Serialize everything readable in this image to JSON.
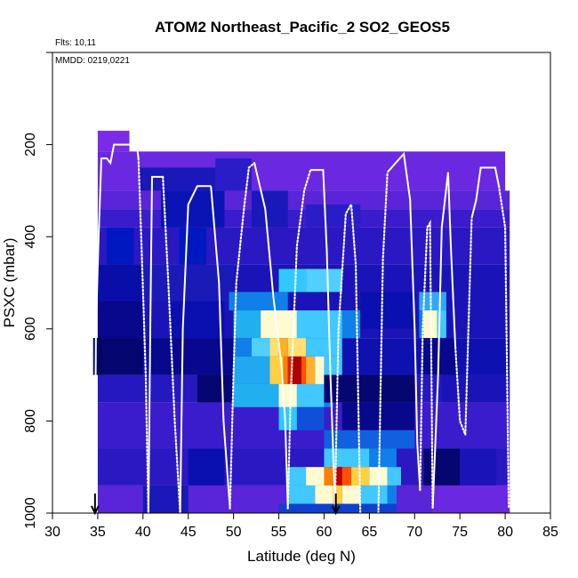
{
  "chart_data": {
    "type": "heatmap",
    "title": "ATOM2 Northeast_Pacific_2 SO2_GEOS5",
    "flights_label": "Flts: 10,11",
    "dates_label": "MMDD: 0219,0221",
    "xlabel": "Latitude (deg N)",
    "ylabel": "PSXC (mbar)",
    "xlim": [
      30,
      85
    ],
    "ylim": [
      1000,
      0
    ],
    "x_ticks": [
      30,
      35,
      40,
      45,
      50,
      55,
      60,
      65,
      70,
      75,
      80,
      85
    ],
    "y_ticks": [
      200,
      400,
      600,
      800,
      1000
    ],
    "x_tick_labels": [
      "30",
      "35",
      "40",
      "45",
      "50",
      "55",
      "60",
      "65",
      "70",
      "75",
      "80",
      "85"
    ],
    "y_tick_labels": [
      "200",
      "400",
      "600",
      "800",
      "1000"
    ],
    "markers": [
      34.7,
      61.3
    ],
    "colors": {
      "background": "#7b2be8",
      "flight_track": "#ffffff",
      "axis": "#000000"
    },
    "cells": [
      {
        "x": [
          35.0,
          38.5
        ],
        "p": [
          170,
          215
        ],
        "c": "#7b2be8"
      },
      {
        "x": [
          35.0,
          80.0
        ],
        "p": [
          215,
          300
        ],
        "c": "#6a28e0"
      },
      {
        "x": [
          35.0,
          80.5
        ],
        "p": [
          300,
          340
        ],
        "c": "#5a24d8"
      },
      {
        "x": [
          35.0,
          80.5
        ],
        "p": [
          340,
          380
        ],
        "c": "#3a1ccc"
      },
      {
        "x": [
          35.0,
          80.5
        ],
        "p": [
          380,
          460
        ],
        "c": "#2a18c2"
      },
      {
        "x": [
          35.0,
          80.5
        ],
        "p": [
          460,
          620
        ],
        "c": "#1a14b8"
      },
      {
        "x": [
          34.5,
          80.5
        ],
        "p": [
          620,
          700
        ],
        "c": "#0f10b0"
      },
      {
        "x": [
          35.0,
          80.5
        ],
        "p": [
          700,
          760
        ],
        "c": "#2518c0"
      },
      {
        "x": [
          35.0,
          80.5
        ],
        "p": [
          760,
          860
        ],
        "c": "#3a1ccc"
      },
      {
        "x": [
          35.0,
          80.5
        ],
        "p": [
          860,
          940
        ],
        "c": "#2a18c2"
      },
      {
        "x": [
          35.0,
          80.5
        ],
        "p": [
          940,
          1000
        ],
        "c": "#5a24d8"
      },
      {
        "x": [
          39.5,
          48.0
        ],
        "p": [
          250,
          300
        ],
        "c": "#1a18b8"
      },
      {
        "x": [
          42.0,
          49.0
        ],
        "p": [
          300,
          380
        ],
        "c": "#0a14b4"
      },
      {
        "x": [
          44.0,
          47.0
        ],
        "p": [
          380,
          470
        ],
        "c": "#0018c0"
      },
      {
        "x": [
          48.0,
          52.0
        ],
        "p": [
          230,
          300
        ],
        "c": "#2a1cc6"
      },
      {
        "x": [
          52.0,
          56.0
        ],
        "p": [
          300,
          380
        ],
        "c": "#1a18b8"
      },
      {
        "x": [
          58.0,
          64.0
        ],
        "p": [
          330,
          380
        ],
        "c": "#2a1cc6"
      },
      {
        "x": [
          36.0,
          39.0
        ],
        "p": [
          380,
          460
        ],
        "c": "#0018c0"
      },
      {
        "x": [
          35.0,
          40.5
        ],
        "p": [
          460,
          540
        ],
        "c": "#0a0ea8"
      },
      {
        "x": [
          35.0,
          40.0
        ],
        "p": [
          540,
          620
        ],
        "c": "#08088c"
      },
      {
        "x": [
          35.0,
          40.0
        ],
        "p": [
          620,
          700
        ],
        "c": "#060670"
      },
      {
        "x": [
          40.0,
          50.0
        ],
        "p": [
          460,
          540
        ],
        "c": "#1a1ab8"
      },
      {
        "x": [
          43.0,
          49.0
        ],
        "p": [
          540,
          620
        ],
        "c": "#0a10b0"
      },
      {
        "x": [
          40.5,
          50.0
        ],
        "p": [
          620,
          700
        ],
        "c": "#08088c"
      },
      {
        "x": [
          46.0,
          50.0
        ],
        "p": [
          700,
          760
        ],
        "c": "#060670"
      },
      {
        "x": [
          45.0,
          49.0
        ],
        "p": [
          860,
          940
        ],
        "c": "#0a10b0"
      },
      {
        "x": [
          40.0,
          45.0
        ],
        "p": [
          940,
          1000
        ],
        "c": "#1a18b8"
      },
      {
        "x": [
          49.5,
          56.0
        ],
        "p": [
          520,
          560
        ],
        "c": "#1080e8"
      },
      {
        "x": [
          55.0,
          58.0
        ],
        "p": [
          470,
          520
        ],
        "c": "#30c8ff"
      },
      {
        "x": [
          58.0,
          62.0
        ],
        "p": [
          470,
          520
        ],
        "c": "#50d0ff"
      },
      {
        "x": [
          50.0,
          53.0
        ],
        "p": [
          560,
          620
        ],
        "c": "#20b0f0"
      },
      {
        "x": [
          53.0,
          57.0
        ],
        "p": [
          560,
          620
        ],
        "c": "#fffbd0"
      },
      {
        "x": [
          57.0,
          62.0
        ],
        "p": [
          560,
          620
        ],
        "c": "#40c8ff"
      },
      {
        "x": [
          62.0,
          64.0
        ],
        "p": [
          560,
          620
        ],
        "c": "#1080e8"
      },
      {
        "x": [
          50.0,
          52.0
        ],
        "p": [
          620,
          660
        ],
        "c": "#1080e8"
      },
      {
        "x": [
          52.0,
          54.0
        ],
        "p": [
          620,
          660
        ],
        "c": "#50d0ff"
      },
      {
        "x": [
          54.0,
          55.0
        ],
        "p": [
          620,
          660
        ],
        "c": "#ffe070"
      },
      {
        "x": [
          55.0,
          56.0
        ],
        "p": [
          620,
          660
        ],
        "c": "#ffb020"
      },
      {
        "x": [
          56.0,
          58.0
        ],
        "p": [
          620,
          660
        ],
        "c": "#ffe070"
      },
      {
        "x": [
          58.0,
          62.0
        ],
        "p": [
          620,
          660
        ],
        "c": "#40c8ff"
      },
      {
        "x": [
          50.0,
          54.0
        ],
        "p": [
          660,
          720
        ],
        "c": "#20a8f0"
      },
      {
        "x": [
          54.0,
          55.5
        ],
        "p": [
          660,
          720
        ],
        "c": "#ffd040"
      },
      {
        "x": [
          55.5,
          56.0
        ],
        "p": [
          660,
          720
        ],
        "c": "#ff8000"
      },
      {
        "x": [
          56.0,
          56.5
        ],
        "p": [
          660,
          720
        ],
        "c": "#e02000"
      },
      {
        "x": [
          56.5,
          57.5
        ],
        "p": [
          660,
          720
        ],
        "c": "#b00000"
      },
      {
        "x": [
          57.5,
          58.0
        ],
        "p": [
          660,
          720
        ],
        "c": "#ff5000"
      },
      {
        "x": [
          58.0,
          59.0
        ],
        "p": [
          660,
          720
        ],
        "c": "#ffb030"
      },
      {
        "x": [
          59.0,
          60.0
        ],
        "p": [
          660,
          720
        ],
        "c": "#fffbd0"
      },
      {
        "x": [
          60.0,
          62.0
        ],
        "p": [
          660,
          720
        ],
        "c": "#40c8ff"
      },
      {
        "x": [
          50.0,
          55.0
        ],
        "p": [
          720,
          770
        ],
        "c": "#20b0f0"
      },
      {
        "x": [
          55.0,
          57.0
        ],
        "p": [
          720,
          770
        ],
        "c": "#fffbd0"
      },
      {
        "x": [
          57.0,
          60.0
        ],
        "p": [
          720,
          770
        ],
        "c": "#40c8ff"
      },
      {
        "x": [
          60.0,
          61.0
        ],
        "p": [
          720,
          770
        ],
        "c": "#1080e8"
      },
      {
        "x": [
          55.0,
          57.0
        ],
        "p": [
          770,
          820
        ],
        "c": "#30c8ff"
      },
      {
        "x": [
          57.0,
          60.0
        ],
        "p": [
          770,
          820
        ],
        "c": "#1050d8"
      },
      {
        "x": [
          60.0,
          70.0
        ],
        "p": [
          700,
          760
        ],
        "c": "#060670"
      },
      {
        "x": [
          62.0,
          70.0
        ],
        "p": [
          760,
          820
        ],
        "c": "#08088c"
      },
      {
        "x": [
          60.0,
          70.0
        ],
        "p": [
          820,
          860
        ],
        "c": "#1060e0"
      },
      {
        "x": [
          60.0,
          65.0
        ],
        "p": [
          860,
          900
        ],
        "c": "#40c8ff"
      },
      {
        "x": [
          65.0,
          68.0
        ],
        "p": [
          860,
          900
        ],
        "c": "#1080e8"
      },
      {
        "x": [
          56.0,
          58.0
        ],
        "p": [
          900,
          940
        ],
        "c": "#40c8ff"
      },
      {
        "x": [
          58.0,
          60.0
        ],
        "p": [
          900,
          940
        ],
        "c": "#fffbd0"
      },
      {
        "x": [
          60.0,
          61.0
        ],
        "p": [
          900,
          940
        ],
        "c": "#ff8000"
      },
      {
        "x": [
          61.0,
          62.0
        ],
        "p": [
          900,
          940
        ],
        "c": "#c00000"
      },
      {
        "x": [
          62.0,
          63.0
        ],
        "p": [
          900,
          940
        ],
        "c": "#ff5000"
      },
      {
        "x": [
          63.0,
          65.0
        ],
        "p": [
          900,
          940
        ],
        "c": "#ffd040"
      },
      {
        "x": [
          65.0,
          67.0
        ],
        "p": [
          900,
          940
        ],
        "c": "#fffbd0"
      },
      {
        "x": [
          67.0,
          68.5
        ],
        "p": [
          900,
          940
        ],
        "c": "#40c8ff"
      },
      {
        "x": [
          56.0,
          59.0
        ],
        "p": [
          940,
          980
        ],
        "c": "#40c8ff"
      },
      {
        "x": [
          59.0,
          61.0
        ],
        "p": [
          940,
          980
        ],
        "c": "#fffbd0"
      },
      {
        "x": [
          61.0,
          62.0
        ],
        "p": [
          940,
          980
        ],
        "c": "#ffd040"
      },
      {
        "x": [
          62.0,
          64.0
        ],
        "p": [
          940,
          980
        ],
        "c": "#fffbd0"
      },
      {
        "x": [
          64.0,
          67.0
        ],
        "p": [
          940,
          980
        ],
        "c": "#40c8ff"
      },
      {
        "x": [
          67.0,
          69.0
        ],
        "p": [
          940,
          980
        ],
        "c": "#1080e8"
      },
      {
        "x": [
          55.0,
          68.0
        ],
        "p": [
          980,
          1000
        ],
        "c": "#1040d0"
      },
      {
        "x": [
          68.0,
          72.0
        ],
        "p": [
          940,
          1000
        ],
        "c": "#5a24d8"
      },
      {
        "x": [
          64.0,
          70.0
        ],
        "p": [
          520,
          600
        ],
        "c": "#0a10b0"
      },
      {
        "x": [
          70.5,
          73.5
        ],
        "p": [
          520,
          560
        ],
        "c": "#30a8f8"
      },
      {
        "x": [
          71.0,
          72.5
        ],
        "p": [
          560,
          620
        ],
        "c": "#fffbd0"
      },
      {
        "x": [
          70.5,
          71.0
        ],
        "p": [
          560,
          620
        ],
        "c": "#1080e8"
      },
      {
        "x": [
          72.5,
          73.5
        ],
        "p": [
          560,
          620
        ],
        "c": "#40c8ff"
      },
      {
        "x": [
          71.0,
          74.5
        ],
        "p": [
          620,
          700
        ],
        "c": "#08088c"
      },
      {
        "x": [
          73.0,
          80.5
        ],
        "p": [
          700,
          760
        ],
        "c": "#1a14b8"
      },
      {
        "x": [
          71.0,
          75.0
        ],
        "p": [
          860,
          940
        ],
        "c": "#060670"
      },
      {
        "x": [
          75.0,
          79.0
        ],
        "p": [
          860,
          940
        ],
        "c": "#1a14b8"
      },
      {
        "x": [
          72.0,
          80.5
        ],
        "p": [
          940,
          1000
        ],
        "c": "#6a28e0"
      },
      {
        "x": [
          34.5,
          35.5
        ],
        "p": [
          620,
          700
        ],
        "c": "#040460"
      }
    ],
    "flight_track_segments": [
      {
        "style": "solid",
        "lat": [
          34.7,
          34.8,
          35.1,
          35.4,
          36.0,
          36.4,
          36.8,
          39.3,
          39.5
        ],
        "p": [
          900,
          600,
          400,
          230,
          230,
          240,
          200,
          200,
          230
        ]
      },
      {
        "style": "dotted",
        "lat": [
          39.5,
          39.8,
          40.3,
          40.6
        ],
        "p": [
          230,
          400,
          700,
          1000
        ]
      },
      {
        "style": "solid",
        "lat": [
          40.6,
          40.8,
          41.0,
          42.2
        ],
        "p": [
          1000,
          600,
          270,
          270
        ]
      },
      {
        "style": "dotted",
        "lat": [
          42.2,
          42.8,
          43.5,
          44.1
        ],
        "p": [
          270,
          500,
          800,
          1000
        ]
      },
      {
        "style": "solid",
        "lat": [
          44.1,
          44.4,
          45.0,
          46.0,
          47.5
        ],
        "p": [
          1000,
          600,
          330,
          290,
          290
        ]
      },
      {
        "style": "solid",
        "lat": [
          47.5,
          48.4,
          48.9,
          49.6
        ],
        "p": [
          290,
          500,
          800,
          990
        ]
      },
      {
        "style": "dotted",
        "lat": [
          49.6,
          50.0,
          50.3,
          51.2,
          51.7,
          52.3
        ],
        "p": [
          990,
          700,
          500,
          330,
          250,
          240
        ]
      },
      {
        "style": "solid",
        "lat": [
          52.3,
          53.5,
          54.4,
          55.3,
          55.7,
          56.0
        ],
        "p": [
          240,
          340,
          530,
          680,
          800,
          990
        ]
      },
      {
        "style": "dotted",
        "lat": [
          56.0,
          56.3,
          57.0,
          57.8,
          58.5
        ],
        "p": [
          990,
          750,
          420,
          300,
          255
        ]
      },
      {
        "style": "solid",
        "lat": [
          58.5,
          59.9,
          60.3,
          60.7,
          61.2
        ],
        "p": [
          255,
          255,
          430,
          700,
          980
        ]
      },
      {
        "style": "dotted",
        "lat": [
          61.2,
          61.6,
          62.4,
          63.0,
          63.5,
          64.0
        ],
        "p": [
          980,
          600,
          350,
          330,
          460,
          1000
        ]
      },
      {
        "style": "dotted",
        "lat": [
          66.0,
          66.5,
          67.0
        ],
        "p": [
          1000,
          450,
          260
        ]
      },
      {
        "style": "solid",
        "lat": [
          67.0,
          68.8,
          69.5,
          70.0,
          70.3,
          70.6
        ],
        "p": [
          260,
          220,
          320,
          600,
          850,
          950
        ]
      },
      {
        "style": "dotted",
        "lat": [
          70.6,
          70.9,
          71.4,
          71.7,
          72.0
        ],
        "p": [
          950,
          600,
          380,
          370,
          990
        ]
      },
      {
        "style": "solid",
        "lat": [
          72.0,
          72.6,
          73.0,
          73.7,
          74.0,
          74.5
        ],
        "p": [
          990,
          700,
          380,
          260,
          420,
          640
        ]
      },
      {
        "style": "dotted",
        "lat": [
          74.5,
          75.0,
          75.6,
          76.3
        ],
        "p": [
          640,
          800,
          830,
          360
        ]
      },
      {
        "style": "solid",
        "lat": [
          76.3,
          76.8,
          77.3,
          78.9,
          79.3
        ],
        "p": [
          360,
          320,
          250,
          250,
          290
        ]
      },
      {
        "style": "dotted",
        "lat": [
          79.3,
          80.0,
          80.4
        ],
        "p": [
          290,
          380,
          990
        ]
      }
    ]
  }
}
